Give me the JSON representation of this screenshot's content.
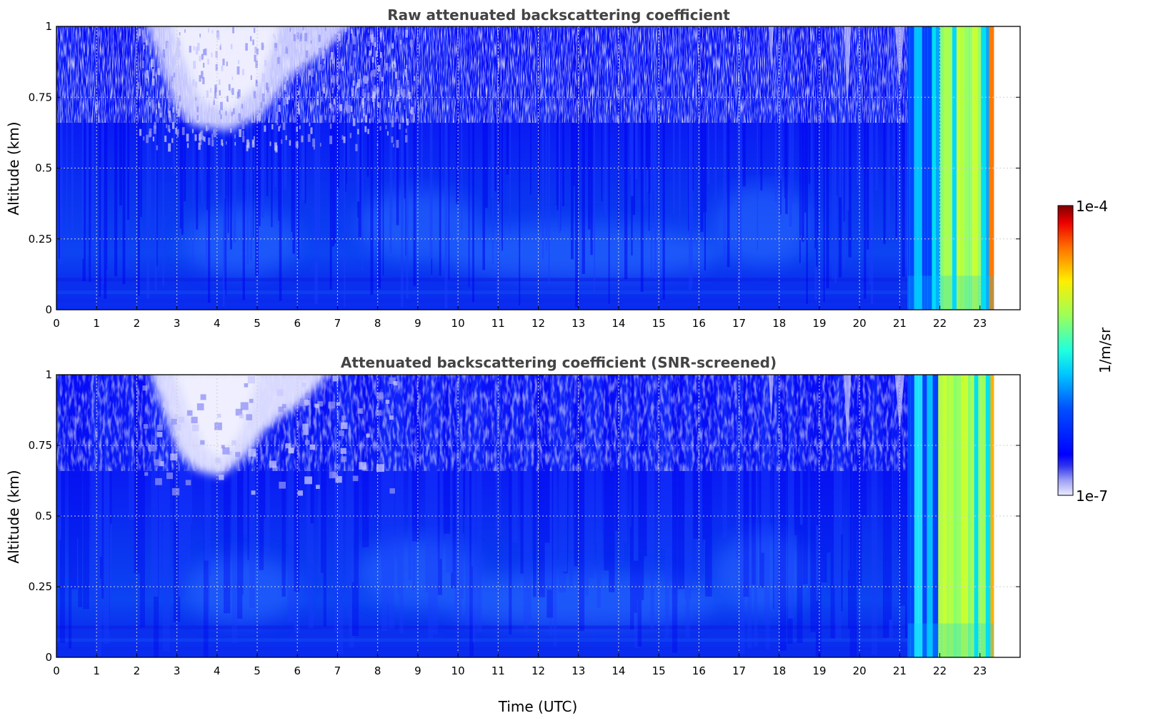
{
  "chart_data": [
    {
      "type": "heatmap",
      "title": "Raw attenuated backscattering coefficient",
      "xlabel": "",
      "ylabel": "Altitude (km)",
      "xlim": [
        0,
        24
      ],
      "ylim": [
        0,
        1
      ],
      "xticks": [
        "0",
        "1",
        "2",
        "3",
        "4",
        "5",
        "6",
        "7",
        "8",
        "9",
        "10",
        "11",
        "12",
        "13",
        "14",
        "15",
        "16",
        "17",
        "18",
        "19",
        "20",
        "21",
        "22",
        "23"
      ],
      "yticks": [
        "0",
        "0.25",
        "0.5",
        "0.75",
        "1"
      ],
      "grid": true,
      "colorscale": "jet, logarithmic",
      "data_end_time": 23.35,
      "features": [
        {
          "kind": "low-signal plume (near 1e-7)",
          "time_range": [
            2.6,
            6.0
          ],
          "altitude_range": [
            0.63,
            1.0
          ]
        },
        {
          "kind": "high backscatter band (~1e-5 to 5e-5)",
          "time_range": [
            21.2,
            23.35
          ],
          "altitude_range": [
            0,
            1.0
          ]
        }
      ]
    },
    {
      "type": "heatmap",
      "title": "Attenuated backscattering coefficient (SNR-screened)",
      "xlabel": "Time (UTC)",
      "ylabel": "Altitude (km)",
      "xlim": [
        0,
        24
      ],
      "ylim": [
        0,
        1
      ],
      "xticks": [
        "0",
        "1",
        "2",
        "3",
        "4",
        "5",
        "6",
        "7",
        "8",
        "9",
        "10",
        "11",
        "12",
        "13",
        "14",
        "15",
        "16",
        "17",
        "18",
        "19",
        "20",
        "21",
        "22",
        "23"
      ],
      "yticks": [
        "0",
        "0.25",
        "0.5",
        "0.75",
        "1"
      ],
      "grid": true,
      "colorscale": "jet, logarithmic",
      "data_end_time": 23.35,
      "features": [
        {
          "kind": "screened low-signal region (near 1e-7)",
          "time_range": [
            2.7,
            5.5
          ],
          "altitude_range": [
            0.64,
            1.0
          ]
        },
        {
          "kind": "high backscatter band (~1e-5 to 5e-5)",
          "time_range": [
            21.2,
            23.35
          ],
          "altitude_range": [
            0,
            1.0
          ]
        }
      ]
    }
  ],
  "colorbar": {
    "label": "1/m/sr",
    "max_label": "1e-4",
    "min_label": "1e-7",
    "scale": "log"
  }
}
